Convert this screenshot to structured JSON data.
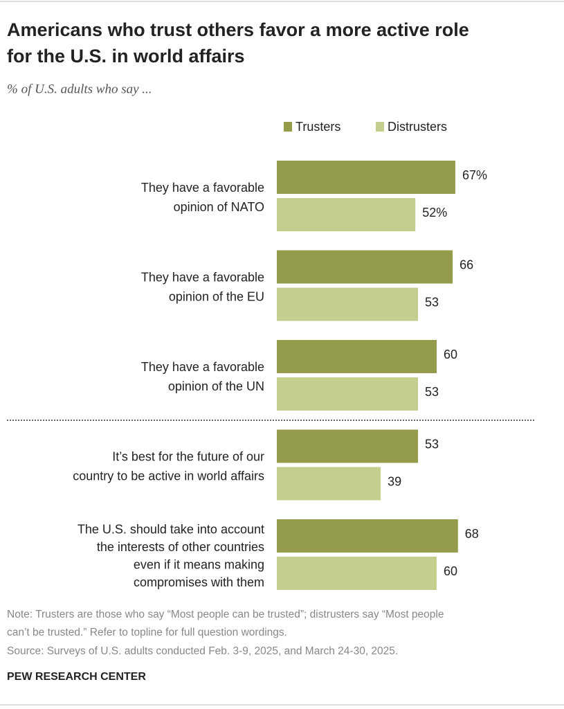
{
  "chart_data": {
    "type": "bar",
    "orientation": "horizontal",
    "title": [
      "Americans who trust others favor a more active role",
      "for the U.S. in world affairs"
    ],
    "subtitle": "% of U.S. adults who say ...",
    "categories": [
      [
        "They have a favorable",
        "opinion of NATO"
      ],
      [
        "They have a favorable",
        "opinion of the EU"
      ],
      [
        "They have a favorable",
        "opinion of the UN"
      ],
      [
        "It’s best for the future of our",
        "country to be active in world affairs"
      ],
      [
        "The U.S. should take into account",
        "the interests of other countries",
        "even if it means making",
        "compromises with them"
      ]
    ],
    "series": [
      {
        "name": "Trusters",
        "color": "#949b4a",
        "values": [
          67,
          66,
          60,
          53,
          68
        ],
        "value_labels": [
          "67%",
          "66",
          "60",
          "53",
          "68"
        ]
      },
      {
        "name": "Distrusters",
        "color": "#c5cd8f",
        "values": [
          52,
          53,
          53,
          39,
          60
        ],
        "value_labels": [
          "52%",
          "53",
          "53",
          "39",
          "60"
        ]
      }
    ],
    "xlim": [
      0,
      100
    ],
    "note": [
      "Note: Trusters are those who say “Most people can be trusted”; distrusters say “Most people",
      "can’t be trusted.” Refer to topline for full question wordings."
    ],
    "source": "Source: Surveys of U.S. adults conducted Feb. 3-9, 2025, and March 24-30, 2025.",
    "credit": "PEW RESEARCH CENTER"
  }
}
